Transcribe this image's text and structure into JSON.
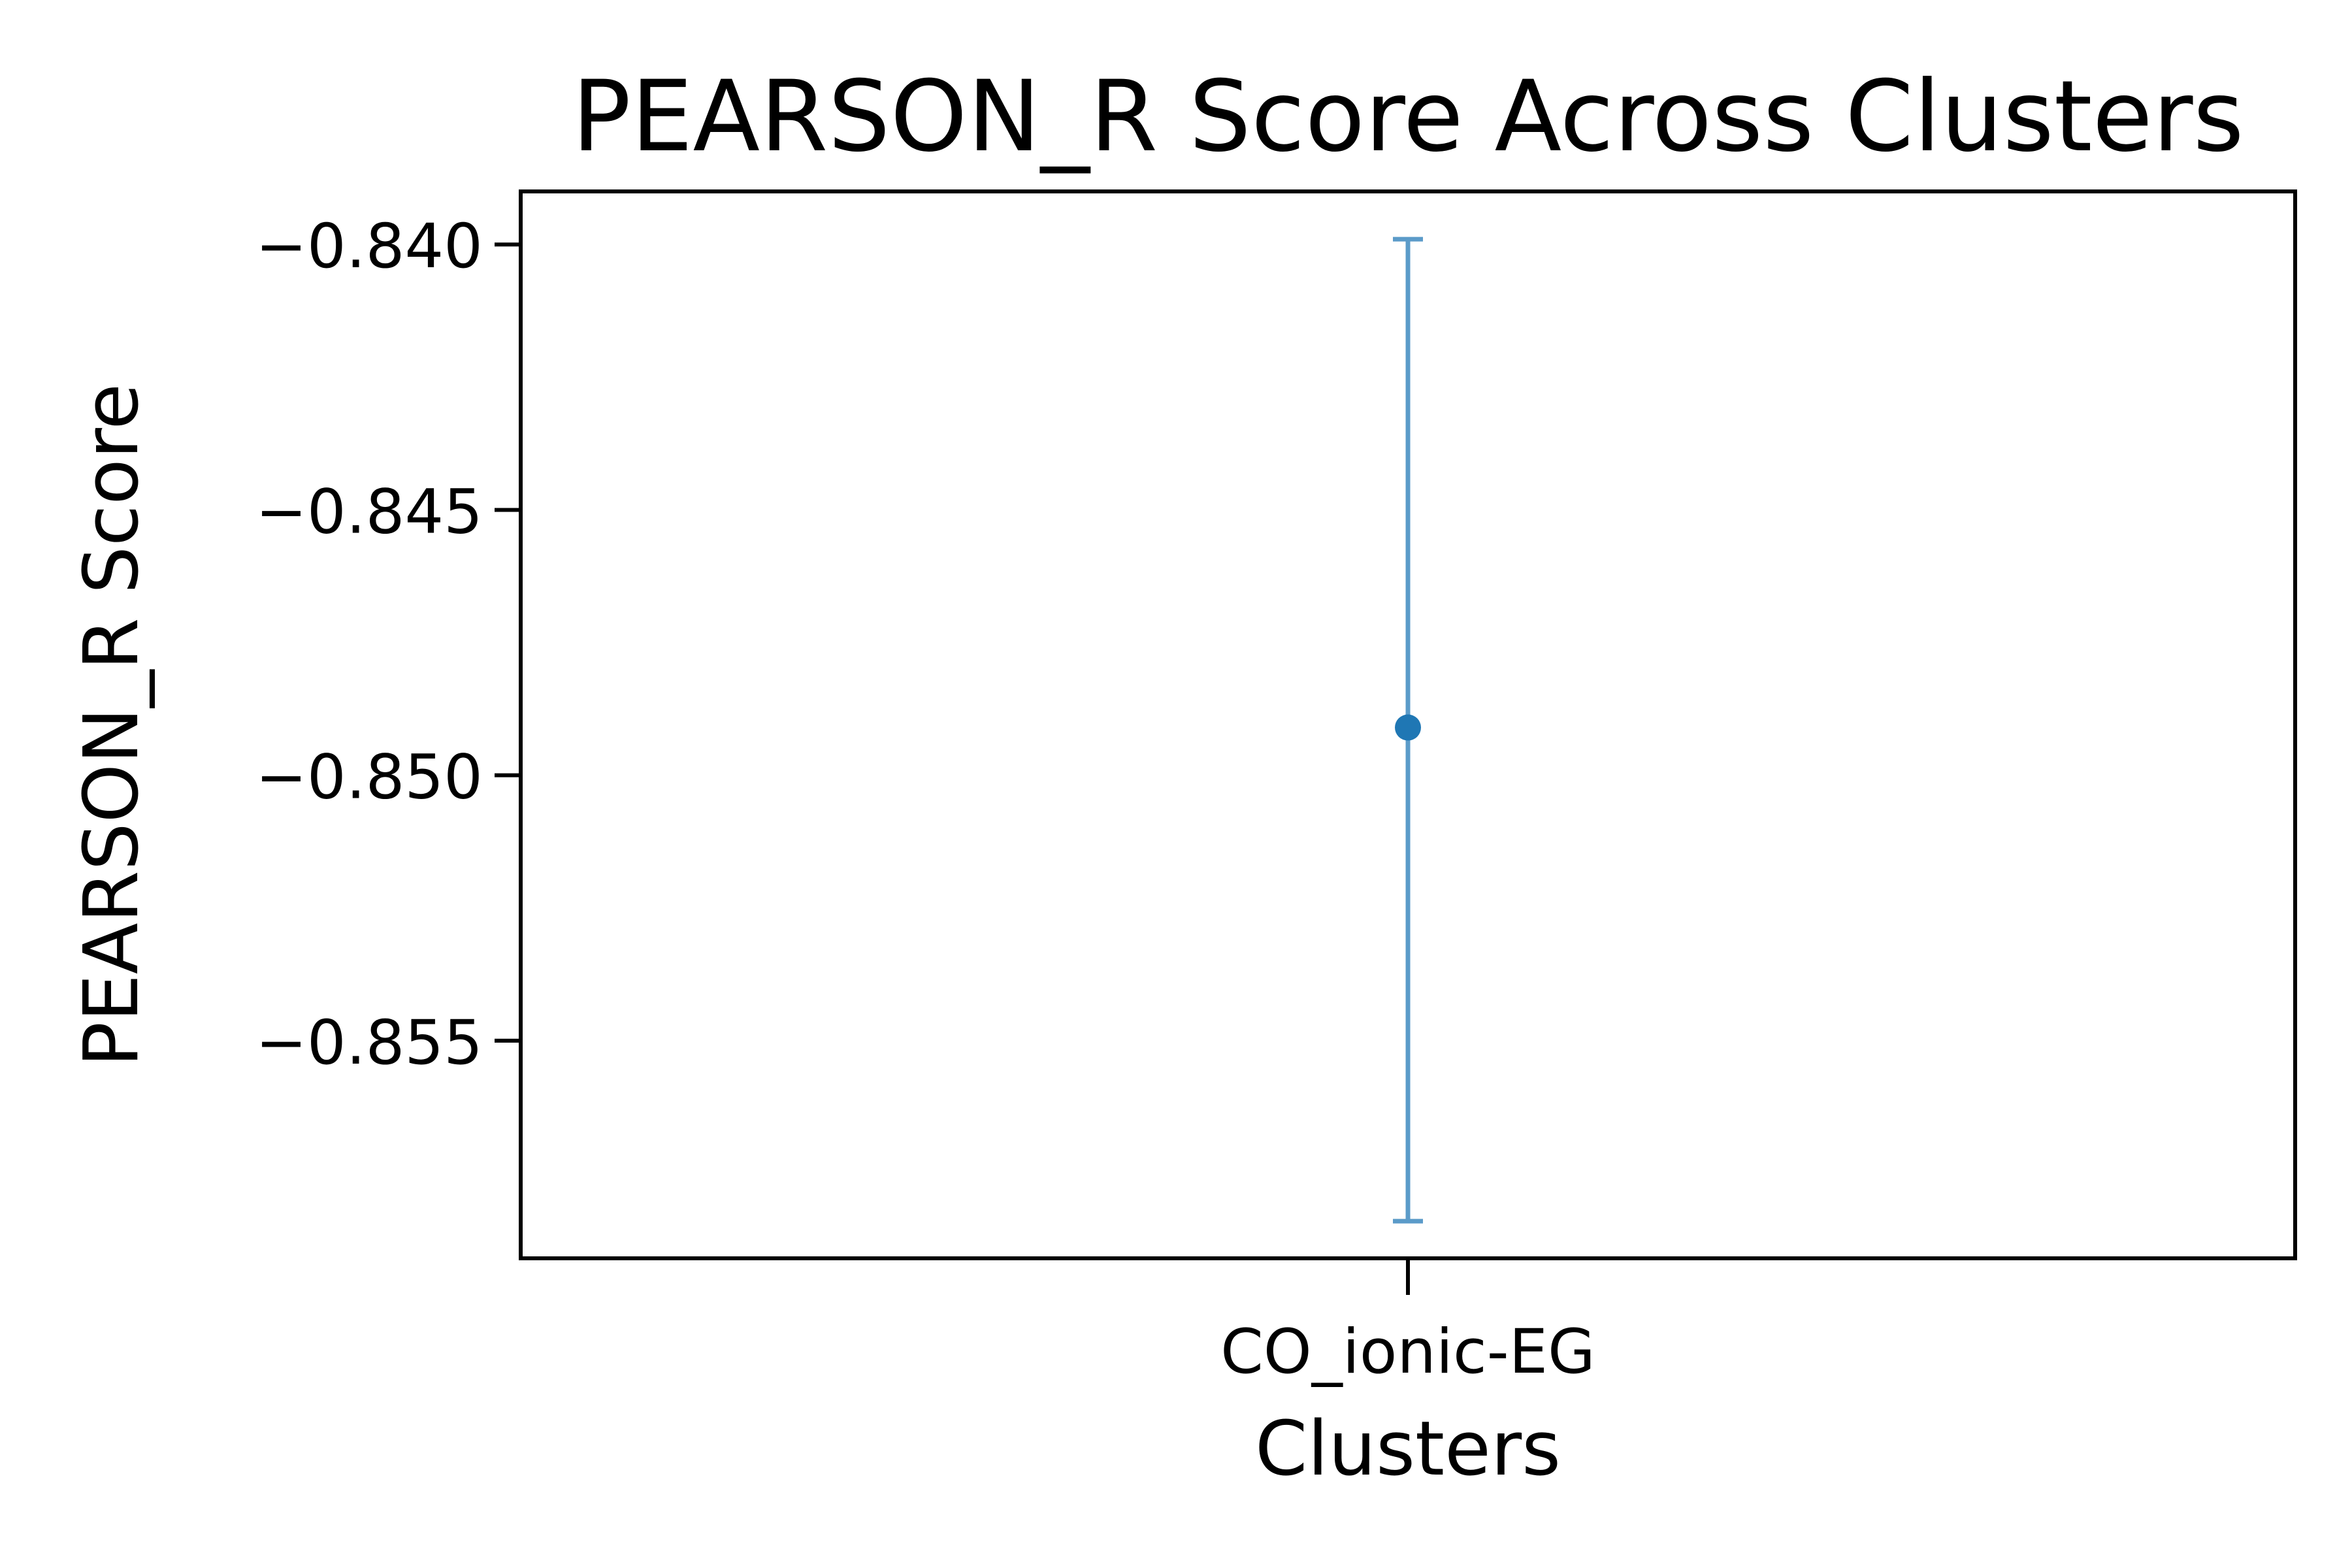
{
  "chart_data": {
    "type": "scatter",
    "title": "PEARSON_R Score Across Clusters",
    "xlabel": "Clusters",
    "ylabel": "PEARSON_R Score",
    "categories": [
      "CO_ionic-EG"
    ],
    "series": [
      {
        "values": [
          -0.8491
        ],
        "error_low": [
          -0.8584
        ],
        "error_high": [
          -0.8399
        ]
      }
    ],
    "ylim": [
      -0.8591,
      -0.839
    ],
    "yticks": [
      {
        "value": -0.84,
        "label": "−0.840"
      },
      {
        "value": -0.845,
        "label": "−0.845"
      },
      {
        "value": -0.85,
        "label": "−0.850"
      },
      {
        "value": -0.855,
        "label": "−0.855"
      }
    ],
    "grid": false,
    "legend": "none",
    "colors": {
      "point": "#1f77b4",
      "errorbar": "#5b9bc9",
      "axes": "#000000"
    }
  }
}
